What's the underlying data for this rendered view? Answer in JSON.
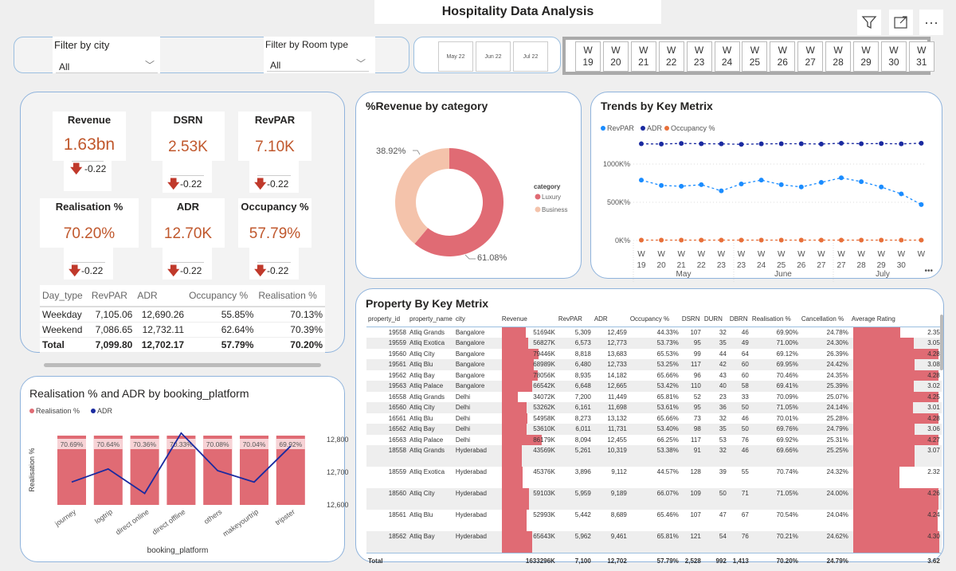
{
  "header": {
    "title": "Hospitality Data Analysis",
    "icons": [
      "filter-icon",
      "focus-mode-icon",
      "more-options-icon"
    ],
    "more_label": "···"
  },
  "filters": {
    "city_label": "Filter by city",
    "city_value": "All",
    "room_label": "Filter by Room type",
    "room_value": "All"
  },
  "months": [
    "May 22",
    "Jun 22",
    "Jul 22"
  ],
  "weeks": [
    [
      "W",
      "19"
    ],
    [
      "W",
      "20"
    ],
    [
      "W",
      "21"
    ],
    [
      "W",
      "22"
    ],
    [
      "W",
      "23"
    ],
    [
      "W",
      "24"
    ],
    [
      "W",
      "25"
    ],
    [
      "W",
      "26"
    ],
    [
      "W",
      "27"
    ],
    [
      "W",
      "28"
    ],
    [
      "W",
      "29"
    ],
    [
      "W",
      "30"
    ],
    [
      "W",
      "31"
    ]
  ],
  "kpis": [
    {
      "label": "Revenue",
      "value": "1.63bn",
      "delta": "-0.22"
    },
    {
      "label": "DSRN",
      "value": "2.53K",
      "delta": "-0.22"
    },
    {
      "label": "RevPAR",
      "value": "7.10K",
      "delta": "-0.22"
    },
    {
      "label": "Realisation %",
      "value": "70.20%",
      "delta": "-0.22"
    },
    {
      "label": "ADR",
      "value": "12.70K",
      "delta": "-0.22"
    },
    {
      "label": "Occupancy %",
      "value": "57.79%",
      "delta": "-0.22"
    }
  ],
  "day_type_table": {
    "headers": [
      "Day_type",
      "RevPAR",
      "ADR",
      "Occupancy %",
      "Realisation %"
    ],
    "rows": [
      [
        "Weekday",
        "7,105.06",
        "12,690.26",
        "55.85%",
        "70.13%"
      ],
      [
        "Weekend",
        "7,086.65",
        "12,732.11",
        "62.64%",
        "70.39%"
      ]
    ],
    "total": [
      "Total",
      "7,099.80",
      "12,702.17",
      "57.79%",
      "70.20%"
    ]
  },
  "donut": {
    "title": "%Revenue by category",
    "legend_title": "category",
    "slices": [
      {
        "name": "Luxury",
        "value": 61.08,
        "label": "61.08%",
        "color": "#e06b74"
      },
      {
        "name": "Business",
        "value": 38.92,
        "label": "38.92%",
        "color": "#f4c3ab"
      }
    ]
  },
  "trend": {
    "title": "Trends by Key Metrix",
    "yticks": [
      "0K%",
      "500K%",
      "1000K%"
    ],
    "ytick_values": [
      0,
      500,
      1000
    ],
    "xlabels": [
      "19",
      "20",
      "21",
      "22",
      "23",
      "23",
      "24",
      "25",
      "26",
      "27",
      "27",
      "28",
      "29",
      "30",
      ""
    ],
    "xprefix": "W",
    "months": [
      "May",
      "June",
      "July"
    ],
    "series": [
      {
        "name": "RevPAR",
        "color": "#1a8cff",
        "values": [
          790,
          720,
          710,
          730,
          650,
          740,
          790,
          730,
          700,
          760,
          820,
          770,
          700,
          610,
          470
        ]
      },
      {
        "name": "ADR",
        "color": "#1a2aa0",
        "values": [
          1265,
          1262,
          1270,
          1266,
          1264,
          1258,
          1264,
          1266,
          1266,
          1262,
          1272,
          1266,
          1268,
          1264,
          1272
        ]
      },
      {
        "name": "Occupancy %",
        "color": "#e8703a",
        "values": [
          5,
          5,
          5,
          5,
          5,
          5,
          5,
          5,
          5,
          5,
          5,
          5,
          5,
          5,
          5
        ]
      }
    ],
    "more_label": "•••"
  },
  "booking": {
    "title": "Realisation % and ADR by booking_platform",
    "xlabel": "booking_platform",
    "ylabel": "Realisation %",
    "legend": [
      {
        "name": "Realisation %",
        "color": "#e06b74"
      },
      {
        "name": "ADR",
        "color": "#1a2aa0"
      }
    ],
    "categories": [
      "journey",
      "logtrip",
      "direct online",
      "direct offline",
      "others",
      "makeyourtrip",
      "tripster"
    ],
    "realisation_labels": [
      "70.69%",
      "70.64%",
      "70.36%",
      "70.33%",
      "70.08%",
      "70.04%",
      "69.92%"
    ],
    "adr": [
      12670,
      12710,
      12635,
      12820,
      12705,
      12670,
      12780
    ],
    "adr_ticks": [
      "12,600",
      "12,700",
      "12,800"
    ],
    "adr_tick_values": [
      12600,
      12700,
      12800
    ]
  },
  "property_table": {
    "title": "Property By Key Metrix",
    "headers": [
      "property_id",
      "property_name",
      "city",
      "Revenue",
      "RevPAR",
      "ADR",
      "Occupancy %",
      "DSRN",
      "DURN",
      "DBRN",
      "Realisation %",
      "Cancellation %",
      "Average Rating"
    ],
    "rows": [
      [
        "19558",
        "Atliq Grands",
        "Bangalore",
        "51694K",
        "5,309",
        "12,459",
        "44.33%",
        "107",
        "32",
        "46",
        "69.90%",
        "24.78%",
        "2.35"
      ],
      [
        "19559",
        "Atliq Exotica",
        "Bangalore",
        "56827K",
        "6,573",
        "12,773",
        "53.73%",
        "95",
        "35",
        "49",
        "71.00%",
        "24.30%",
        "3.05"
      ],
      [
        "19560",
        "Atliq City",
        "Bangalore",
        "79446K",
        "8,818",
        "13,683",
        "65.53%",
        "99",
        "44",
        "64",
        "69.12%",
        "26.39%",
        "4.28"
      ],
      [
        "19561",
        "Atliq Blu",
        "Bangalore",
        "68989K",
        "6,480",
        "12,733",
        "53.25%",
        "117",
        "42",
        "60",
        "69.95%",
        "24.42%",
        "3.08"
      ],
      [
        "19562",
        "Atliq Bay",
        "Bangalore",
        "78056K",
        "8,935",
        "14,182",
        "65.66%",
        "96",
        "43",
        "60",
        "70.46%",
        "24.35%",
        "4.28"
      ],
      [
        "19563",
        "Atliq Palace",
        "Bangalore",
        "66542K",
        "6,648",
        "12,665",
        "53.42%",
        "110",
        "40",
        "58",
        "69.41%",
        "25.39%",
        "3.02"
      ],
      [
        "16558",
        "Atliq Grands",
        "Delhi",
        "34072K",
        "7,200",
        "11,449",
        "65.81%",
        "52",
        "23",
        "33",
        "70.09%",
        "25.07%",
        "4.25"
      ],
      [
        "16560",
        "Atliq City",
        "Delhi",
        "53262K",
        "6,161",
        "11,698",
        "53.61%",
        "95",
        "36",
        "50",
        "71.05%",
        "24.14%",
        "3.01"
      ],
      [
        "16561",
        "Atliq Blu",
        "Delhi",
        "54958K",
        "8,273",
        "13,132",
        "65.66%",
        "73",
        "32",
        "46",
        "70.01%",
        "25.28%",
        "4.28"
      ],
      [
        "16562",
        "Atliq Bay",
        "Delhi",
        "53610K",
        "6,011",
        "11,731",
        "53.40%",
        "98",
        "35",
        "50",
        "69.76%",
        "24.79%",
        "3.06"
      ],
      [
        "16563",
        "Atliq Palace",
        "Delhi",
        "86179K",
        "8,094",
        "12,455",
        "66.25%",
        "117",
        "53",
        "76",
        "69.92%",
        "25.31%",
        "4.27"
      ],
      [
        "18558",
        "Atliq Grands",
        "Hyderabad",
        "43569K",
        "5,261",
        "10,319",
        "53.38%",
        "91",
        "32",
        "46",
        "69.66%",
        "25.25%",
        "3.07"
      ],
      [
        "18559",
        "Atliq Exotica",
        "Hyderabad",
        "45376K",
        "3,896",
        "9,112",
        "44.57%",
        "128",
        "39",
        "55",
        "70.74%",
        "24.32%",
        "2.32"
      ],
      [
        "18560",
        "Atliq City",
        "Hyderabad",
        "59103K",
        "5,959",
        "9,189",
        "66.07%",
        "109",
        "50",
        "71",
        "71.05%",
        "24.00%",
        "4.26"
      ],
      [
        "18561",
        "Atliq Blu",
        "Hyderabad",
        "52993K",
        "5,442",
        "8,689",
        "65.46%",
        "107",
        "47",
        "67",
        "70.54%",
        "24.04%",
        "4.24"
      ],
      [
        "18562",
        "Atliq Bay",
        "Hyderabad",
        "65643K",
        "5,962",
        "9,461",
        "65.81%",
        "121",
        "54",
        "76",
        "70.21%",
        "24.62%",
        "4.30"
      ]
    ],
    "total": [
      "Total",
      "",
      "",
      "1633296K",
      "7,100",
      "12,702",
      "57.79%",
      "2,528",
      "992",
      "1,413",
      "70.20%",
      "24.79%",
      "3.62"
    ]
  }
}
